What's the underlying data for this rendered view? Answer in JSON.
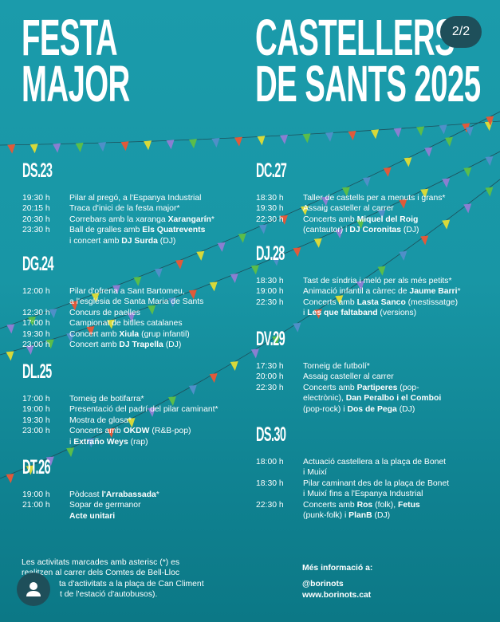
{
  "header": {
    "title_left": [
      "FESTA",
      "MAJOR"
    ],
    "title_right": [
      "CASTELLERS",
      "DE SANTS 2025"
    ]
  },
  "pager": {
    "label": "2/2"
  },
  "colors": {
    "background": "#1896a5",
    "text": "#ffffff",
    "badge": "#1e4f5a",
    "flags": [
      "#e05a3a",
      "#d7d93a",
      "#8a7fd1",
      "#5bbd4a",
      "#4f8fc8"
    ]
  },
  "days_left": [
    {
      "head": "DS.23",
      "rows": [
        {
          "time": "19:30 h",
          "segs": [
            [
              "Pilar al pregó, a l'Espanya Industrial",
              0
            ]
          ]
        },
        {
          "time": "20:15 h",
          "segs": [
            [
              "Traca d'inici de la festa major*",
              0
            ]
          ]
        },
        {
          "time": "20:30 h",
          "segs": [
            [
              "Correbars amb la xaranga ",
              0
            ],
            [
              "Xarangarín",
              1
            ],
            [
              "*",
              0
            ]
          ]
        },
        {
          "time": "23:30 h",
          "segs": [
            [
              "Ball de gralles amb ",
              0
            ],
            [
              "Els Quatrevents",
              1
            ]
          ]
        },
        {
          "time": "",
          "segs": [
            [
              "i concert amb ",
              0
            ],
            [
              "DJ Surda",
              1
            ],
            [
              " (DJ)",
              0
            ]
          ]
        }
      ]
    },
    {
      "head": "DG.24",
      "rows": [
        {
          "time": "12:00 h",
          "segs": [
            [
              "Pilar d'ofrena a Sant Bartomeu,",
              0
            ]
          ]
        },
        {
          "time": "",
          "segs": [
            [
              "a l'església de Santa Maria de Sants",
              0
            ]
          ]
        },
        {
          "time": "12:30 h",
          "segs": [
            [
              "Concurs de paelles",
              0
            ]
          ]
        },
        {
          "time": "17:00 h",
          "segs": [
            [
              "Campionat de bitlles catalanes",
              0
            ]
          ]
        },
        {
          "time": "19:30 h",
          "segs": [
            [
              "Concert amb ",
              0
            ],
            [
              "Xiula",
              1
            ],
            [
              " (grup infantil)",
              0
            ]
          ]
        },
        {
          "time": "23:00 h",
          "segs": [
            [
              "Concert amb ",
              0
            ],
            [
              "DJ Trapella",
              1
            ],
            [
              " (DJ)",
              0
            ]
          ]
        }
      ]
    },
    {
      "head": "DL.25",
      "rows": [
        {
          "time": "17:00 h",
          "segs": [
            [
              "Torneig de botifarra*",
              0
            ]
          ]
        },
        {
          "time": "19:00 h",
          "segs": [
            [
              "Presentació del padrí del pilar caminant*",
              0
            ]
          ]
        },
        {
          "time": "19:30 h",
          "segs": [
            [
              "Mostra de glosa*",
              0
            ]
          ]
        },
        {
          "time": "23:00 h",
          "segs": [
            [
              "Concerts amb ",
              0
            ],
            [
              "OKDW",
              1
            ],
            [
              " (R&B-pop)",
              0
            ]
          ]
        },
        {
          "time": "",
          "segs": [
            [
              "i ",
              0
            ],
            [
              "Extraño Weys",
              1
            ],
            [
              " (rap)",
              0
            ]
          ]
        }
      ]
    },
    {
      "head": "DT.26",
      "rows": [
        {
          "time": "19:00 h",
          "segs": [
            [
              "Pòdcast ",
              0
            ],
            [
              "l'Arrabassada",
              1
            ],
            [
              "*",
              0
            ]
          ]
        },
        {
          "time": "21:00 h",
          "segs": [
            [
              "Sopar de germanor",
              0
            ]
          ]
        },
        {
          "time": "",
          "segs": [
            [
              "Acte unitari",
              1
            ]
          ]
        }
      ]
    }
  ],
  "days_right": [
    {
      "head": "DC.27",
      "rows": [
        {
          "time": "18:30 h",
          "segs": [
            [
              "Taller de castells per a menuts i grans*",
              0
            ]
          ]
        },
        {
          "time": "19:30 h",
          "segs": [
            [
              "Assaig casteller al carrer",
              0
            ]
          ]
        },
        {
          "time": "22:30 h",
          "segs": [
            [
              "Concerts amb ",
              0
            ],
            [
              "Miquel del Roig",
              1
            ]
          ]
        },
        {
          "time": "",
          "segs": [
            [
              "(cantautor) i ",
              0
            ],
            [
              "DJ Coronitas",
              1
            ],
            [
              " (DJ)",
              0
            ]
          ]
        }
      ]
    },
    {
      "head": "DJ.28",
      "rows": [
        {
          "time": "18:30 h",
          "segs": [
            [
              "Tast de síndria i meló per als més petits*",
              0
            ]
          ]
        },
        {
          "time": "19:00 h",
          "segs": [
            [
              "Animació infantil a càrrec de ",
              0
            ],
            [
              "Jaume Barri",
              1
            ],
            [
              "*",
              0
            ]
          ]
        },
        {
          "time": "22:30 h",
          "segs": [
            [
              "Concerts amb ",
              0
            ],
            [
              "Lasta Sanco",
              1
            ],
            [
              " (mestissatge)",
              0
            ]
          ]
        },
        {
          "time": "",
          "segs": [
            [
              "i ",
              0
            ],
            [
              "Les que faltaband",
              1
            ],
            [
              " (versions)",
              0
            ]
          ]
        }
      ]
    },
    {
      "head": "DV.29",
      "rows": [
        {
          "time": "17:30 h",
          "segs": [
            [
              "Torneig de futbolí*",
              0
            ]
          ]
        },
        {
          "time": "20:00 h",
          "segs": [
            [
              "Assaig casteller al carrer",
              0
            ]
          ]
        },
        {
          "time": "22:30 h",
          "segs": [
            [
              "Concerts amb ",
              0
            ],
            [
              "Partiperes",
              1
            ],
            [
              " (pop-",
              0
            ]
          ]
        },
        {
          "time": "",
          "segs": [
            [
              "electrònic), ",
              0
            ],
            [
              "Dan Peralbo i el Comboi",
              1
            ]
          ]
        },
        {
          "time": "",
          "segs": [
            [
              "(pop-rock) i ",
              0
            ],
            [
              "Dos de Pega",
              1
            ],
            [
              " (DJ)",
              0
            ]
          ]
        }
      ]
    },
    {
      "head": "DS.30",
      "rows": [
        {
          "time": "18:00 h",
          "segs": [
            [
              "Actuació castellera a la plaça de Bonet",
              0
            ]
          ]
        },
        {
          "time": "",
          "segs": [
            [
              "i Muixí",
              0
            ]
          ]
        },
        {
          "time": "18:30 h",
          "segs": [
            [
              "Pilar caminant des de la plaça de Bonet",
              0
            ]
          ]
        },
        {
          "time": "",
          "segs": [
            [
              "i Muixí fins a l'Espanya Industrial",
              0
            ]
          ]
        },
        {
          "time": "22:30 h",
          "segs": [
            [
              "Concerts amb ",
              0
            ],
            [
              "Ros",
              1
            ],
            [
              " (folk), ",
              0
            ],
            [
              "Fetus",
              1
            ]
          ]
        },
        {
          "time": "",
          "segs": [
            [
              "(punk-folk) i ",
              0
            ],
            [
              "PlanB",
              1
            ],
            [
              " (DJ)",
              0
            ]
          ]
        }
      ]
    }
  ],
  "footer_note": [
    "Les activitats marcades amb asterisc (*) es",
    "realitzen al carrer dels Comtes de Bell-Lloc",
    "ta d'activitats a la plaça de Can Climent",
    "t de l'estació d'autobusos)."
  ],
  "more_info": {
    "label": "Més informació a:",
    "handle": "@borinots",
    "url": "www.borinots.cat"
  },
  "avatar": {
    "icon": "user-icon"
  }
}
